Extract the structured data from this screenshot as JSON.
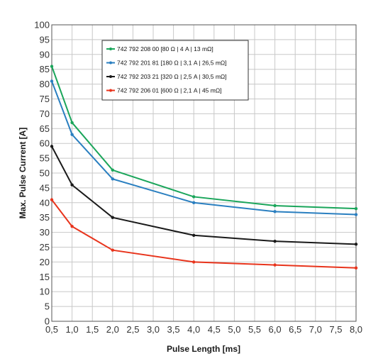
{
  "chart_data": {
    "type": "line",
    "xlabel": "Pulse  Length [ms]",
    "ylabel": "Max. Pulse Current [A]",
    "xlim": [
      0.5,
      8.0
    ],
    "ylim": [
      0,
      100
    ],
    "x_ticks": [
      "0,5",
      "1,0",
      "1,5",
      "2,0",
      "2,5",
      "3,0",
      "3,5",
      "4,0",
      "4,5",
      "5,0",
      "5,5",
      "6,0",
      "6,5",
      "7,0",
      "7,5",
      "8,0"
    ],
    "y_ticks": [
      "0",
      "5",
      "10",
      "15",
      "20",
      "25",
      "30",
      "35",
      "40",
      "45",
      "50",
      "55",
      "60",
      "65",
      "70",
      "75",
      "80",
      "85",
      "90",
      "95",
      "100"
    ],
    "grid": true,
    "legend_position": "top-left",
    "series": [
      {
        "name": "742 792 208 00 [80 Ω | 4 A | 13 mΩ]",
        "color": "#1aa55a",
        "x": [
          0.5,
          1.0,
          2.0,
          4.0,
          6.0,
          8.0
        ],
        "y": [
          86,
          67,
          51,
          42,
          39,
          38
        ]
      },
      {
        "name": "742 792 201 81 [180 Ω | 3,1 A | 26,5 mΩ]",
        "color": "#2a7fc0",
        "x": [
          0.5,
          1.0,
          2.0,
          4.0,
          6.0,
          8.0
        ],
        "y": [
          81,
          63,
          48,
          40,
          37,
          36
        ]
      },
      {
        "name": "742 792 203 21 [320 Ω | 2,5 A | 30,5 mΩ]",
        "color": "#1a1a1a",
        "x": [
          0.5,
          1.0,
          2.0,
          4.0,
          6.0,
          8.0
        ],
        "y": [
          59,
          46,
          35,
          29,
          27,
          26
        ]
      },
      {
        "name": "742 792 206 01 [600 Ω | 2,1 A | 45 mΩ]",
        "color": "#e8341c",
        "x": [
          0.5,
          1.0,
          2.0,
          4.0,
          6.0,
          8.0
        ],
        "y": [
          41,
          32,
          24,
          20,
          19,
          18
        ]
      }
    ]
  }
}
